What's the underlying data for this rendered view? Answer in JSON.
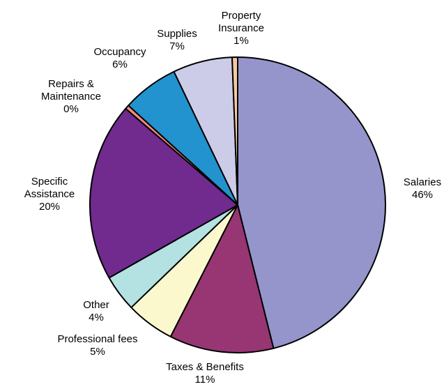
{
  "chart_data": {
    "type": "pie",
    "title": "",
    "start_angle_deg": 90,
    "direction": "clockwise",
    "slices": [
      {
        "label": [
          "Salaries"
        ],
        "percent_label": "46%",
        "value": 46.1,
        "color": "#9595cc"
      },
      {
        "label": [
          "Taxes & Benefits"
        ],
        "percent_label": "11%",
        "value": 11.4,
        "color": "#973673"
      },
      {
        "label": [
          "Professional fees"
        ],
        "percent_label": "5%",
        "value": 5.3,
        "color": "#fbf8cd"
      },
      {
        "label": [
          "Other"
        ],
        "percent_label": "4%",
        "value": 4.0,
        "color": "#b4e2e3"
      },
      {
        "label": [
          "Specific",
          "Assistance"
        ],
        "percent_label": "20%",
        "value": 19.5,
        "color": "#712a8e"
      },
      {
        "label": [
          "Repairs &",
          "Maintenance"
        ],
        "percent_label": "0%",
        "value": 0.45,
        "color": "#f38b7f"
      },
      {
        "label": [
          "Occupancy"
        ],
        "percent_label": "6%",
        "value": 6.15,
        "color": "#2293ce"
      },
      {
        "label": [
          "Supplies"
        ],
        "percent_label": "7%",
        "value": 6.5,
        "color": "#cdcce8"
      },
      {
        "label": [
          "Property",
          "Insurance"
        ],
        "percent_label": "1%",
        "value": 0.6,
        "color": "#f7c8a0"
      }
    ]
  }
}
